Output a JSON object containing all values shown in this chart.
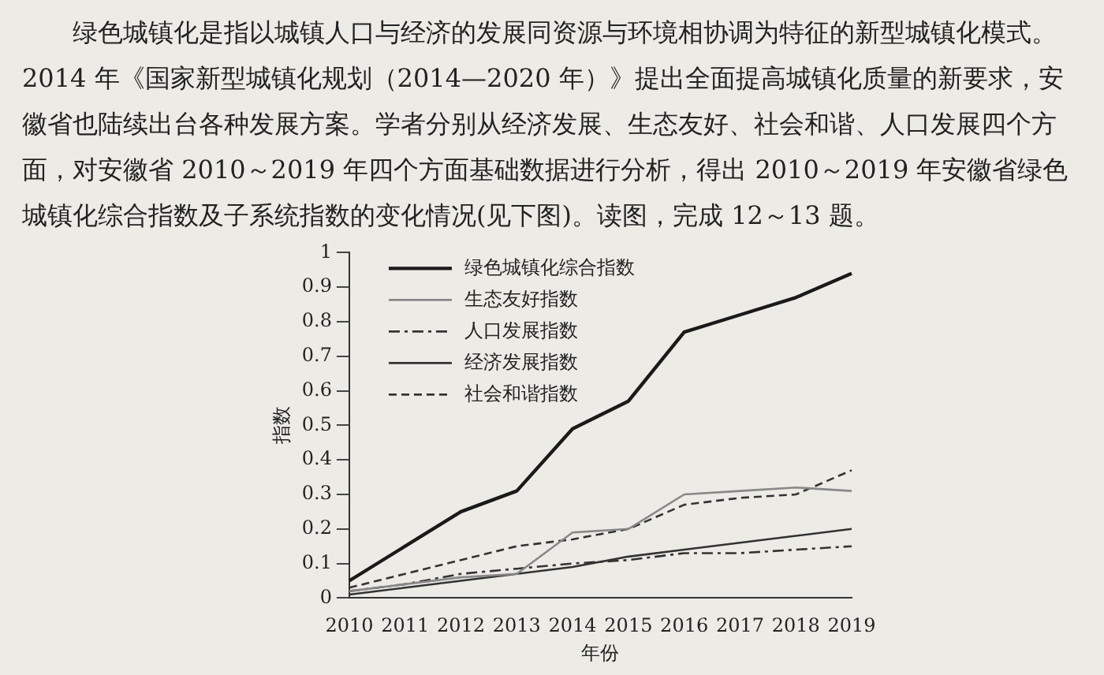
{
  "chart_data": {
    "type": "line",
    "xlabel": "年份",
    "ylabel": "指数",
    "annotations": [
      "绿色城镇化是指以城镇人口与经济的发展同资源与环境相协调为特征的新型城镇化模式。2014 年《国家新型城镇化规划（2014—2020 年）》提出全面提高城镇化质量的新要求，安徽省也陆续出台各种发展方案。学者分别从经济发展、生态友好、社会和谐、人口发展四个方面，对安徽省 2010～2019 年四个方面基础数据进行分析，得出 2010～2019 年安徽省绿色城镇化综合指数及子系统指数的变化情况(见下图)。读图，完成 12～13 题。"
    ],
    "categories": [
      "2010",
      "2011",
      "2012",
      "2013",
      "2014",
      "2015",
      "2016",
      "2017",
      "2018",
      "2019"
    ],
    "series": [
      {
        "name": "绿色城镇化综合指数",
        "color": "#1a1a1a",
        "line_style": "solid",
        "values": [
          0.05,
          0.15,
          0.25,
          0.31,
          0.49,
          0.57,
          0.77,
          0.82,
          0.87,
          0.94
        ]
      },
      {
        "name": "生态友好指数",
        "color": "#888888",
        "line_style": "solid",
        "values": [
          0.02,
          0.04,
          0.06,
          0.07,
          0.19,
          0.2,
          0.3,
          0.31,
          0.32,
          0.31
        ]
      },
      {
        "name": "人口发展指数",
        "color": "#333333",
        "line_style": "dashdot",
        "values": [
          0.02,
          0.04,
          0.07,
          0.085,
          0.1,
          0.11,
          0.13,
          0.13,
          0.14,
          0.15
        ]
      },
      {
        "name": "经济发展指数",
        "color": "#333333",
        "line_style": "solid",
        "values": [
          0.01,
          0.03,
          0.05,
          0.07,
          0.09,
          0.12,
          0.14,
          0.16,
          0.18,
          0.2
        ]
      },
      {
        "name": "社会和谐指数",
        "color": "#333333",
        "line_style": "dashed",
        "values": [
          0.03,
          0.07,
          0.11,
          0.15,
          0.17,
          0.2,
          0.27,
          0.29,
          0.3,
          0.37
        ]
      }
    ],
    "ylim": [
      0,
      1
    ],
    "yticks": [
      0,
      0.1,
      0.2,
      0.3,
      0.4,
      0.5,
      0.6,
      0.7,
      0.8,
      0.9,
      1
    ],
    "grid": false,
    "legend": "top left",
    "marker": "none"
  }
}
